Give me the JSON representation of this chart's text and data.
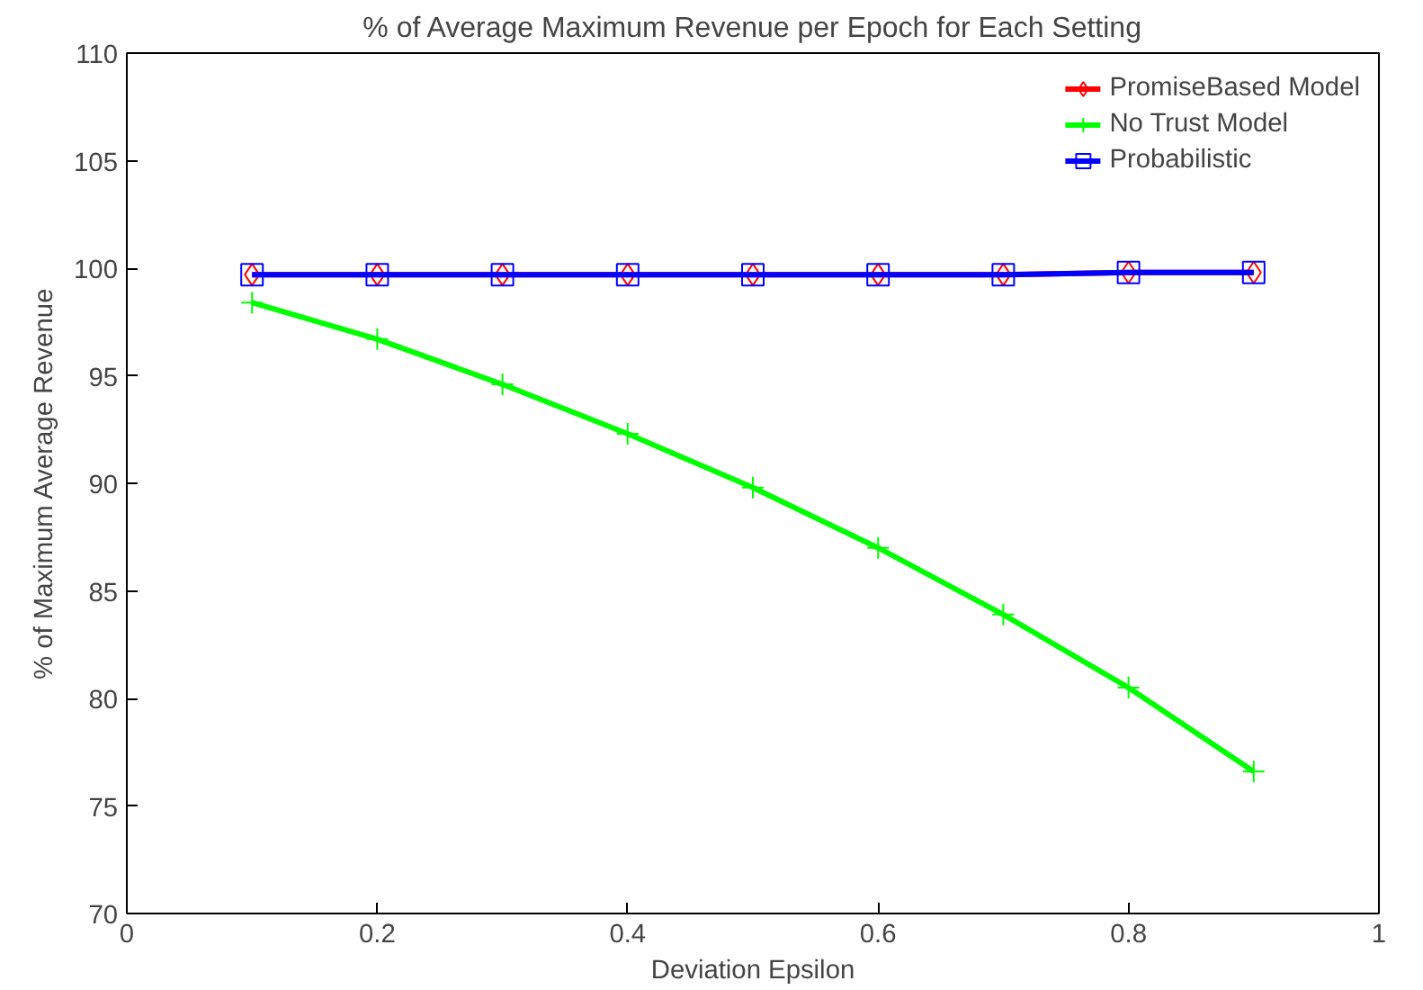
{
  "chart_data": {
    "type": "line",
    "title": "% of Average Maximum Revenue per Epoch for Each Setting",
    "xlabel": "Deviation Epsilon",
    "ylabel": "% of Maximum Average Revenue",
    "x": [
      0.1,
      0.2,
      0.3,
      0.4,
      0.5,
      0.6,
      0.7,
      0.8,
      0.9
    ],
    "series": [
      {
        "name": "PromiseBased Model",
        "color": "#ff0000",
        "marker": "diamond",
        "values": [
          99.7,
          99.7,
          99.7,
          99.7,
          99.7,
          99.7,
          99.7,
          99.8,
          99.8
        ]
      },
      {
        "name": "No Trust Model",
        "color": "#00ff00",
        "marker": "cross",
        "values": [
          98.4,
          96.7,
          94.6,
          92.3,
          89.8,
          87.0,
          83.9,
          80.5,
          76.6
        ]
      },
      {
        "name": "Probabilistic",
        "color": "#0000ff",
        "marker": "square",
        "values": [
          99.7,
          99.7,
          99.7,
          99.7,
          99.7,
          99.7,
          99.7,
          99.8,
          99.8
        ]
      }
    ],
    "xlim": [
      0,
      1
    ],
    "xticks": [
      0,
      0.2,
      0.4,
      0.6,
      0.8,
      1
    ],
    "ylim": [
      70,
      110
    ],
    "yticks": [
      70,
      75,
      80,
      85,
      90,
      95,
      100,
      105,
      110
    ],
    "grid": false,
    "legend": "top right",
    "line_style": "solid"
  }
}
